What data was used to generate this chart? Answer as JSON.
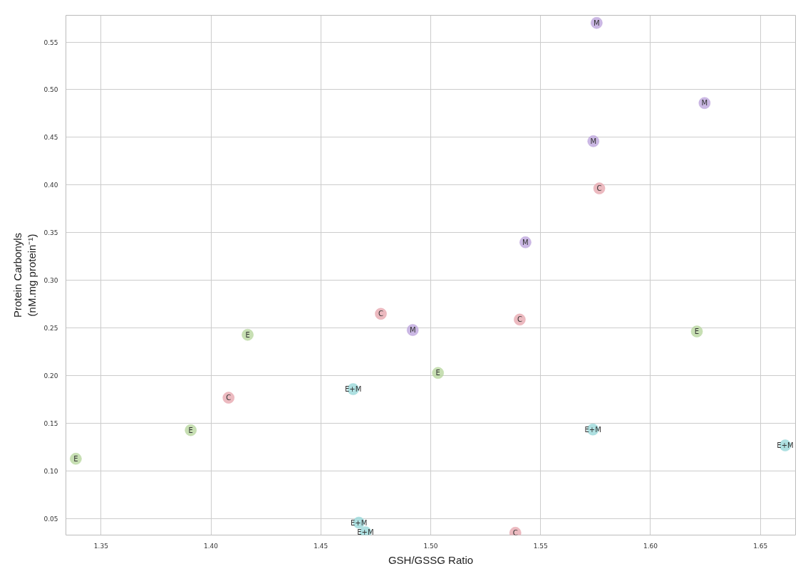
{
  "chart_data": {
    "type": "scatter",
    "xlabel": "GSH/GSSG Ratio",
    "ylabel": "Protein Carbonyls\n(nM.mg protein⁻¹)",
    "xlim": [
      1.334,
      1.666
    ],
    "ylim": [
      0.033,
      0.578
    ],
    "xticks": [
      1.35,
      {
        "value": 1.4,
        "label": "1.40"
      },
      1.45,
      {
        "value": 1.5,
        "label": "1.50"
      },
      1.55,
      {
        "value": 1.6,
        "label": "1.60"
      },
      1.65
    ],
    "yticks": [
      0.05,
      {
        "value": 0.1,
        "label": "0.10"
      },
      0.15,
      {
        "value": 0.2,
        "label": "0.20"
      },
      0.25,
      {
        "value": 0.3,
        "label": "0.30"
      },
      0.35,
      {
        "value": 0.4,
        "label": "0.40"
      },
      0.45,
      {
        "value": 0.5,
        "label": "0.50"
      },
      0.55
    ],
    "grid": true,
    "marker": "circle",
    "series": [
      {
        "name": "E",
        "color": "#b9d7a0",
        "x": [
          1.3385,
          1.3908,
          1.4167,
          1.5033,
          1.6211
        ],
        "values": [
          0.113,
          0.143,
          0.243,
          0.203,
          0.2465
        ]
      },
      {
        "name": "C",
        "color": "#e7a9b0",
        "x": [
          1.408,
          1.4773,
          1.5405,
          1.5767,
          1.5385
        ],
        "values": [
          0.177,
          0.265,
          0.259,
          0.3965,
          0.0354
        ]
      },
      {
        "name": "E+M",
        "color": "#9ad8da",
        "x": [
          1.4647,
          1.4673,
          1.4703,
          1.5738,
          1.6613
        ],
        "values": [
          0.186,
          0.046,
          0.036,
          0.1437,
          0.127
        ]
      },
      {
        "name": "M",
        "color": "#bea6dd",
        "x": [
          1.4918,
          1.5431,
          1.574,
          1.5755,
          1.6246
        ],
        "values": [
          0.248,
          0.34,
          0.446,
          0.57,
          0.486
        ]
      }
    ]
  }
}
